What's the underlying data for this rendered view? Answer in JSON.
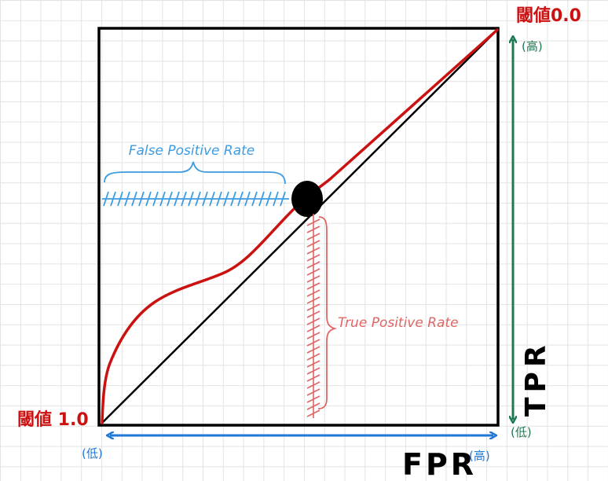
{
  "labels": {
    "threshold_top": "閾値0.0",
    "threshold_bottom": "閾値 1.0",
    "tpr_high": "(高)",
    "tpr_low": "(低)",
    "tpr_axis": "TPR",
    "fpr_low": "(低)",
    "fpr_high": "(高)",
    "fpr_axis": "FPR",
    "false_positive_rate": "False Positive Rate",
    "true_positive_rate": "True Positive Rate"
  },
  "colors": {
    "frame": "#000000",
    "roc_curve": "#cc1111",
    "diagonal": "#000000",
    "threshold_text": "#cc1111",
    "tpr_arrow": "#1e7a4f",
    "fpr_arrow": "#1f77d6",
    "fpr_brace": "#3d9be0",
    "tpr_brace": "#e06666"
  }
}
